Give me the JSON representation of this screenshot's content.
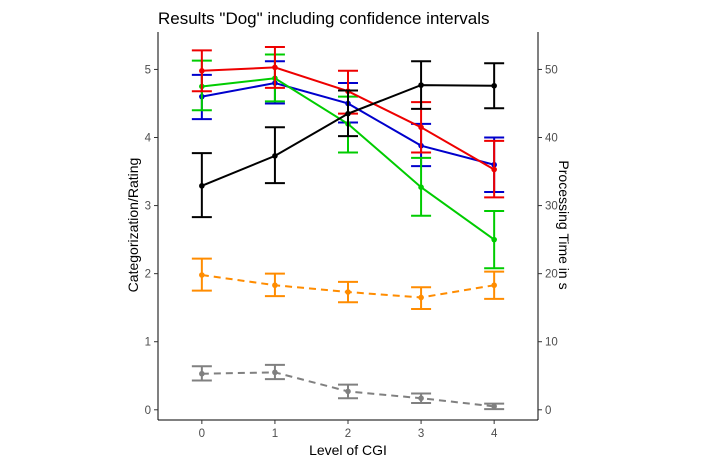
{
  "chart_data": {
    "type": "line",
    "title": "Results \"Dog\" including confidence intervals",
    "xlabel": "Level of CGI",
    "ylabel": "Categorization/Rating",
    "y2label": "Processing Time in s",
    "x": [
      0,
      1,
      2,
      3,
      4
    ],
    "xlim": [
      -0.6,
      4.6
    ],
    "ylim": [
      -0.15,
      5.55
    ],
    "y2lim": [
      -1.5,
      55.5
    ],
    "yticks": [
      0,
      1,
      2,
      3,
      4,
      5
    ],
    "y2ticks": [
      0,
      10,
      20,
      30,
      40,
      50
    ],
    "grid": false,
    "legend": "none",
    "series": [
      {
        "axis": "left",
        "color": "#0000cc",
        "dash": "solid",
        "values": [
          4.6,
          4.8,
          4.5,
          3.88,
          3.6
        ],
        "lower": [
          4.27,
          4.5,
          4.22,
          3.58,
          3.2
        ],
        "upper": [
          4.92,
          5.12,
          4.8,
          4.2,
          4.0
        ]
      },
      {
        "axis": "left",
        "color": "#00cc00",
        "dash": "solid",
        "values": [
          4.75,
          4.87,
          4.2,
          3.27,
          2.5
        ],
        "lower": [
          4.4,
          4.53,
          3.78,
          2.85,
          2.08
        ],
        "upper": [
          5.13,
          5.22,
          4.6,
          3.7,
          2.92
        ]
      },
      {
        "axis": "left",
        "color": "#ee0000",
        "dash": "solid",
        "values": [
          4.98,
          5.03,
          4.68,
          4.15,
          3.53
        ],
        "lower": [
          4.68,
          4.73,
          4.35,
          3.78,
          3.12
        ],
        "upper": [
          5.28,
          5.33,
          4.98,
          4.52,
          3.95
        ]
      },
      {
        "axis": "right",
        "color": "#000000",
        "dash": "solid",
        "values": [
          32.9,
          37.3,
          43.5,
          47.7,
          47.6
        ],
        "lower": [
          28.3,
          33.3,
          40.2,
          44.2,
          44.3
        ],
        "upper": [
          37.7,
          41.5,
          46.9,
          51.2,
          50.9
        ]
      },
      {
        "axis": "left",
        "color": "#ff8c00",
        "dash": "dashed",
        "values": [
          1.98,
          1.83,
          1.73,
          1.65,
          1.83
        ],
        "lower": [
          1.75,
          1.67,
          1.58,
          1.48,
          1.63
        ],
        "upper": [
          2.22,
          2.0,
          1.88,
          1.8,
          2.03
        ]
      },
      {
        "axis": "left",
        "color": "#808080",
        "dash": "dashed",
        "values": [
          0.53,
          0.55,
          0.27,
          0.17,
          0.05
        ],
        "lower": [
          0.43,
          0.45,
          0.17,
          0.1,
          0.01
        ],
        "upper": [
          0.64,
          0.66,
          0.37,
          0.24,
          0.09
        ]
      }
    ]
  }
}
